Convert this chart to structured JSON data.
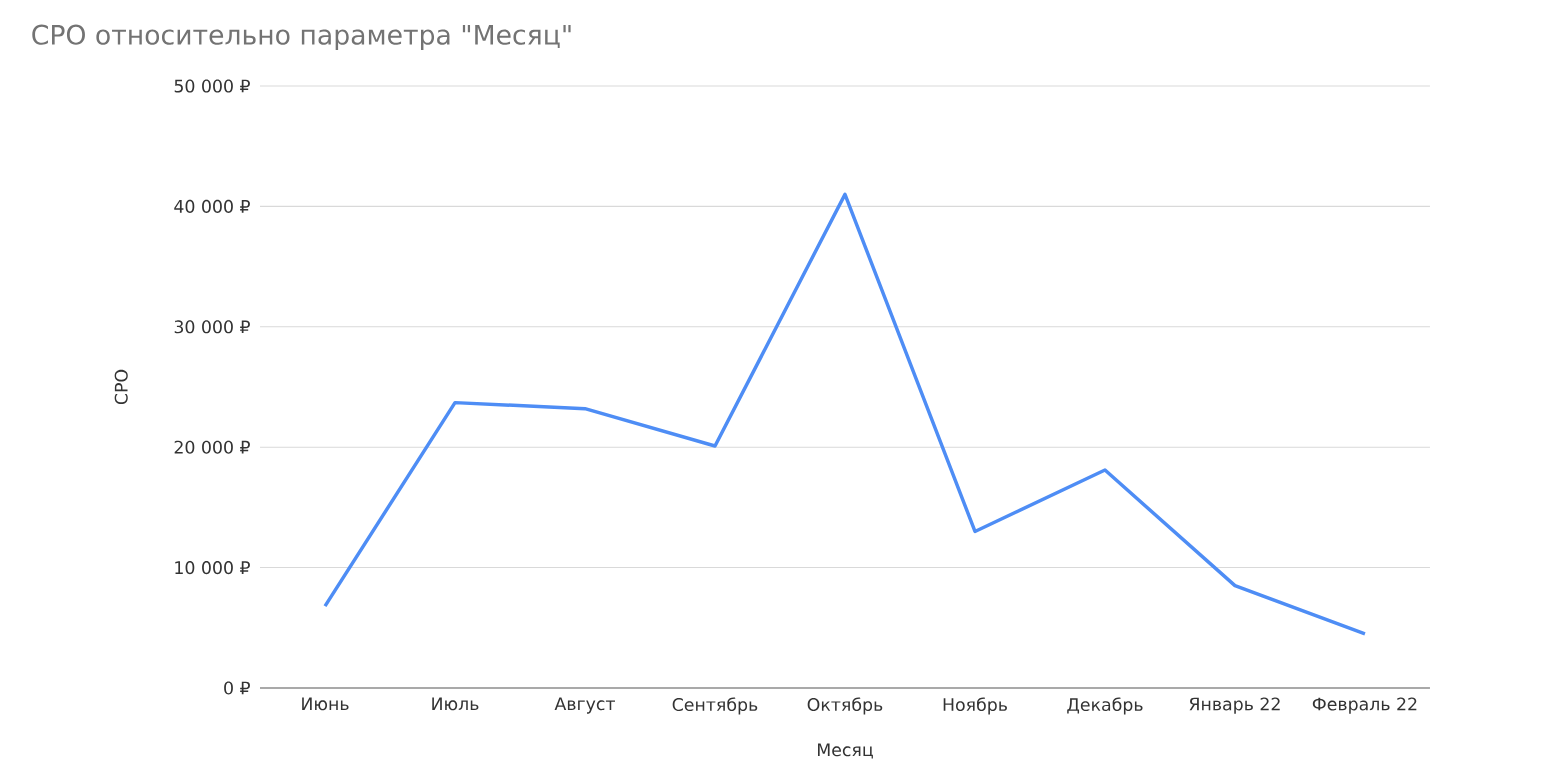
{
  "chart_data": {
    "type": "line",
    "title": "CPO относительно параметра \"Месяц\"",
    "xlabel": "Месяц",
    "ylabel": "CPO",
    "categories": [
      "Июнь",
      "Июль",
      "Август",
      "Сентябрь",
      "Октябрь",
      "Ноябрь",
      "Декабрь",
      "Январь 22",
      "Февраль 22"
    ],
    "series": [
      {
        "color": "#4e8df5",
        "values": [
          6800,
          23700,
          23200,
          20100,
          41000,
          13000,
          18100,
          8500,
          4500
        ]
      }
    ],
    "ylim": [
      0,
      50000
    ],
    "yticks": [
      {
        "value": 0,
        "label": "0 ₽"
      },
      {
        "value": 10000,
        "label": "10 000 ₽"
      },
      {
        "value": 20000,
        "label": "20 000 ₽"
      },
      {
        "value": 30000,
        "label": "30 000 ₽"
      },
      {
        "value": 40000,
        "label": "40 000 ₽"
      },
      {
        "value": 50000,
        "label": "50 000 ₽"
      }
    ],
    "grid": "y",
    "marker": "none",
    "line_style": "solid"
  }
}
